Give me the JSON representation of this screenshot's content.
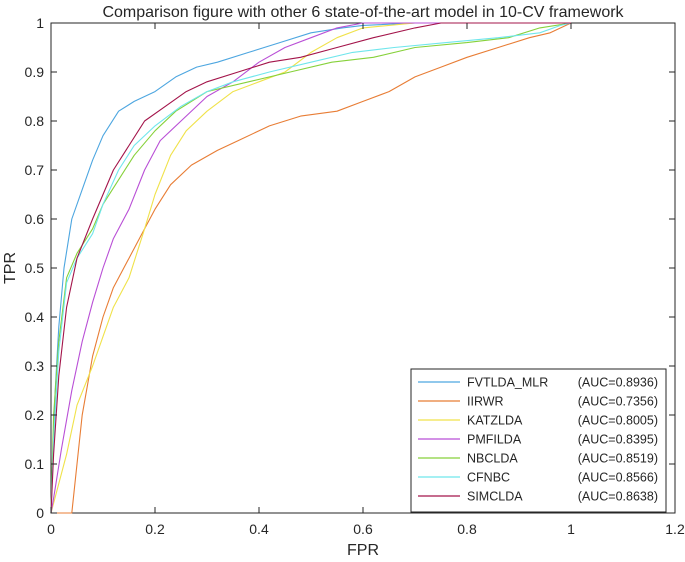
{
  "chart_data": {
    "type": "line",
    "title": "Comparison figure with other 6 state-of-the-art model in 10-CV framework",
    "xlabel": "FPR",
    "ylabel": "TPR",
    "xlim": [
      0,
      1.2
    ],
    "ylim": [
      0,
      1
    ],
    "xticks": [
      "0",
      "0.2",
      "0.4",
      "0.6",
      "0.8",
      "1",
      "1.2"
    ],
    "yticks": [
      "0",
      "0.1",
      "0.2",
      "0.3",
      "0.4",
      "0.5",
      "0.6",
      "0.7",
      "0.8",
      "0.9",
      "1"
    ],
    "grid": false,
    "legend_position": "bottom-right",
    "series": [
      {
        "name": "FVTLDA_MLR",
        "auc_label": "(AUC=0.8936)",
        "color": "#4DA6E0",
        "points": [
          [
            0,
            0
          ],
          [
            0.003,
            0.1
          ],
          [
            0.008,
            0.25
          ],
          [
            0.015,
            0.38
          ],
          [
            0.025,
            0.5
          ],
          [
            0.04,
            0.6
          ],
          [
            0.06,
            0.66
          ],
          [
            0.08,
            0.72
          ],
          [
            0.1,
            0.77
          ],
          [
            0.13,
            0.82
          ],
          [
            0.16,
            0.84
          ],
          [
            0.2,
            0.86
          ],
          [
            0.24,
            0.89
          ],
          [
            0.28,
            0.91
          ],
          [
            0.32,
            0.92
          ],
          [
            0.38,
            0.94
          ],
          [
            0.44,
            0.96
          ],
          [
            0.5,
            0.98
          ],
          [
            0.56,
            0.99
          ],
          [
            0.6,
            0.995
          ],
          [
            0.7,
            1.0
          ],
          [
            1.0,
            1.0
          ]
        ]
      },
      {
        "name": "IIRWR",
        "auc_label": "(AUC=0.7356)",
        "color": "#E87D35",
        "points": [
          [
            0,
            0
          ],
          [
            0.04,
            0
          ],
          [
            0.05,
            0.1
          ],
          [
            0.06,
            0.2
          ],
          [
            0.08,
            0.32
          ],
          [
            0.1,
            0.4
          ],
          [
            0.12,
            0.46
          ],
          [
            0.15,
            0.52
          ],
          [
            0.18,
            0.58
          ],
          [
            0.2,
            0.62
          ],
          [
            0.23,
            0.67
          ],
          [
            0.27,
            0.71
          ],
          [
            0.32,
            0.74
          ],
          [
            0.36,
            0.76
          ],
          [
            0.42,
            0.79
          ],
          [
            0.48,
            0.81
          ],
          [
            0.55,
            0.82
          ],
          [
            0.6,
            0.84
          ],
          [
            0.65,
            0.86
          ],
          [
            0.7,
            0.89
          ],
          [
            0.75,
            0.91
          ],
          [
            0.8,
            0.93
          ],
          [
            0.86,
            0.95
          ],
          [
            0.92,
            0.97
          ],
          [
            0.96,
            0.98
          ],
          [
            1.0,
            1.0
          ]
        ]
      },
      {
        "name": "KATZLDA",
        "auc_label": "(AUC=0.8005)",
        "color": "#F0E24A",
        "points": [
          [
            0,
            0
          ],
          [
            0.01,
            0.04
          ],
          [
            0.03,
            0.12
          ],
          [
            0.05,
            0.22
          ],
          [
            0.08,
            0.3
          ],
          [
            0.1,
            0.36
          ],
          [
            0.12,
            0.42
          ],
          [
            0.15,
            0.48
          ],
          [
            0.18,
            0.58
          ],
          [
            0.2,
            0.65
          ],
          [
            0.23,
            0.73
          ],
          [
            0.26,
            0.78
          ],
          [
            0.3,
            0.82
          ],
          [
            0.35,
            0.86
          ],
          [
            0.4,
            0.88
          ],
          [
            0.45,
            0.9
          ],
          [
            0.5,
            0.94
          ],
          [
            0.55,
            0.97
          ],
          [
            0.6,
            0.99
          ],
          [
            0.7,
            1.0
          ],
          [
            1.0,
            1.0
          ]
        ]
      },
      {
        "name": "PMFILDA",
        "auc_label": "(AUC=0.8395)",
        "color": "#B94FD6",
        "points": [
          [
            0,
            0
          ],
          [
            0.005,
            0.03
          ],
          [
            0.02,
            0.13
          ],
          [
            0.04,
            0.25
          ],
          [
            0.06,
            0.35
          ],
          [
            0.08,
            0.43
          ],
          [
            0.1,
            0.5
          ],
          [
            0.12,
            0.56
          ],
          [
            0.15,
            0.62
          ],
          [
            0.18,
            0.7
          ],
          [
            0.21,
            0.76
          ],
          [
            0.25,
            0.8
          ],
          [
            0.3,
            0.85
          ],
          [
            0.35,
            0.88
          ],
          [
            0.4,
            0.92
          ],
          [
            0.45,
            0.95
          ],
          [
            0.5,
            0.97
          ],
          [
            0.55,
            0.99
          ],
          [
            0.6,
            1.0
          ],
          [
            1.0,
            1.0
          ]
        ]
      },
      {
        "name": "NBCLDA",
        "auc_label": "(AUC=0.8519)",
        "color": "#86D13A",
        "points": [
          [
            0,
            0
          ],
          [
            0.005,
            0.2
          ],
          [
            0.015,
            0.35
          ],
          [
            0.03,
            0.48
          ],
          [
            0.05,
            0.53
          ],
          [
            0.08,
            0.58
          ],
          [
            0.1,
            0.63
          ],
          [
            0.13,
            0.68
          ],
          [
            0.16,
            0.73
          ],
          [
            0.2,
            0.78
          ],
          [
            0.24,
            0.82
          ],
          [
            0.3,
            0.86
          ],
          [
            0.38,
            0.88
          ],
          [
            0.46,
            0.9
          ],
          [
            0.54,
            0.92
          ],
          [
            0.62,
            0.93
          ],
          [
            0.7,
            0.95
          ],
          [
            0.8,
            0.96
          ],
          [
            0.88,
            0.97
          ],
          [
            0.94,
            0.99
          ],
          [
            1.0,
            1.0
          ]
        ]
      },
      {
        "name": "CFNBC",
        "auc_label": "(AUC=0.8566)",
        "color": "#6FE6EC",
        "points": [
          [
            0,
            0
          ],
          [
            0.005,
            0.15
          ],
          [
            0.015,
            0.33
          ],
          [
            0.03,
            0.47
          ],
          [
            0.05,
            0.52
          ],
          [
            0.08,
            0.57
          ],
          [
            0.1,
            0.63
          ],
          [
            0.13,
            0.7
          ],
          [
            0.16,
            0.75
          ],
          [
            0.2,
            0.79
          ],
          [
            0.25,
            0.83
          ],
          [
            0.3,
            0.86
          ],
          [
            0.35,
            0.88
          ],
          [
            0.42,
            0.9
          ],
          [
            0.5,
            0.92
          ],
          [
            0.58,
            0.94
          ],
          [
            0.66,
            0.95
          ],
          [
            0.76,
            0.96
          ],
          [
            0.86,
            0.97
          ],
          [
            0.94,
            0.98
          ],
          [
            0.98,
            0.995
          ],
          [
            1.0,
            1.0
          ]
        ]
      },
      {
        "name": "SIMCLDA",
        "auc_label": "(AUC=0.8638)",
        "color": "#A3144A",
        "points": [
          [
            0,
            0
          ],
          [
            0.005,
            0.12
          ],
          [
            0.015,
            0.28
          ],
          [
            0.03,
            0.42
          ],
          [
            0.05,
            0.52
          ],
          [
            0.08,
            0.6
          ],
          [
            0.1,
            0.65
          ],
          [
            0.12,
            0.7
          ],
          [
            0.15,
            0.75
          ],
          [
            0.18,
            0.8
          ],
          [
            0.22,
            0.83
          ],
          [
            0.26,
            0.86
          ],
          [
            0.3,
            0.88
          ],
          [
            0.36,
            0.9
          ],
          [
            0.42,
            0.92
          ],
          [
            0.48,
            0.93
          ],
          [
            0.55,
            0.95
          ],
          [
            0.62,
            0.97
          ],
          [
            0.7,
            0.99
          ],
          [
            0.75,
            1.0
          ],
          [
            1.0,
            1.0
          ]
        ]
      }
    ]
  }
}
